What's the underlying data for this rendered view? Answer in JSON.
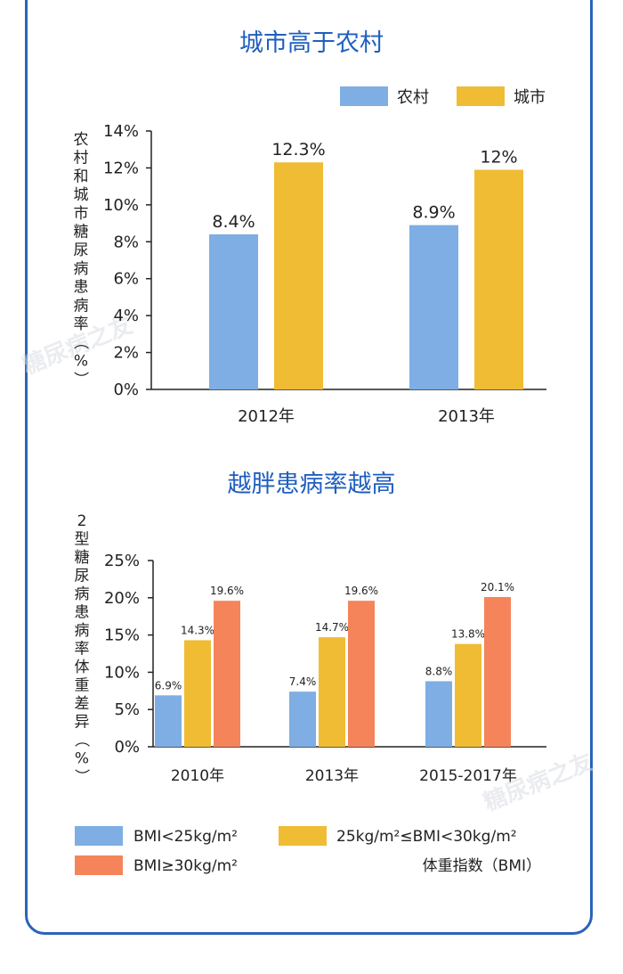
{
  "watermarks": [
    "糖尿病之友",
    "糖尿病之友"
  ],
  "colors": {
    "rural": "#7eaee3",
    "urban": "#f0bc34",
    "bmi_high": "#f5845a",
    "border": "#2b63b8",
    "title": "#1f5fbf"
  },
  "chart_data": [
    {
      "type": "bar",
      "title": "城市高于农村",
      "ylabel": "农村和城市糖尿病患病率（%）",
      "xlabel": "",
      "categories": [
        "2012年",
        "2013年"
      ],
      "yticks": [
        "0%",
        "2%",
        "4%",
        "6%",
        "8%",
        "10%",
        "12%",
        "14%"
      ],
      "ylim": [
        0,
        14
      ],
      "legend_position": "top-right",
      "series": [
        {
          "name": "农村",
          "values": [
            8.4,
            8.9
          ],
          "labels": [
            "8.4%",
            "8.9%"
          ],
          "color": "#7eaee3"
        },
        {
          "name": "城市",
          "values": [
            12.3,
            11.9
          ],
          "labels": [
            "12.3%",
            "12%"
          ],
          "color": "#f0bc34"
        }
      ]
    },
    {
      "type": "bar",
      "title": "越胖患病率越高",
      "ylabel": "2型糖尿病患病率体重差异（%）",
      "xlabel": "体重指数（BMI）",
      "categories": [
        "2010年",
        "2013年",
        "2015-2017年"
      ],
      "yticks": [
        "0%",
        "5%",
        "10%",
        "15%",
        "20%",
        "25%"
      ],
      "ylim": [
        0,
        25
      ],
      "legend_position": "bottom",
      "series": [
        {
          "name": "BMI<25kg/m²",
          "values": [
            6.9,
            7.4,
            8.8
          ],
          "labels": [
            "6.9%",
            "7.4%",
            "8.8%"
          ],
          "color": "#7eaee3"
        },
        {
          "name": "25kg/m²≤BMI<30kg/m²",
          "values": [
            14.3,
            14.7,
            13.8
          ],
          "labels": [
            "14.3%",
            "14.7%",
            "13.8%"
          ],
          "color": "#f0bc34"
        },
        {
          "name": "BMI≥30kg/m²",
          "values": [
            19.6,
            19.6,
            20.1
          ],
          "labels": [
            "19.6%",
            "19.6%",
            "20.1%"
          ],
          "color": "#f5845a"
        }
      ]
    }
  ]
}
